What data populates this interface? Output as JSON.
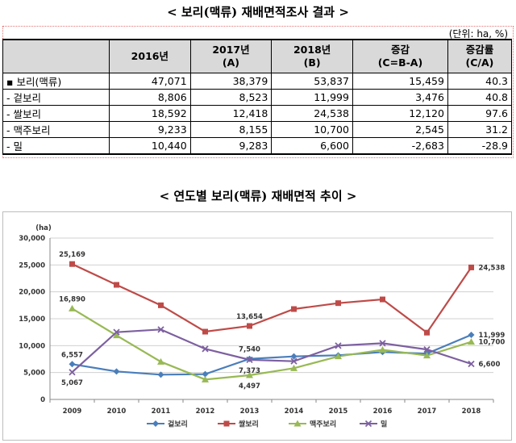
{
  "titles": {
    "table_title": "< 보리(맥류) 재배면적조사 결과 >",
    "chart_title": "< 연도별 보리(맥류) 재배면적 추이 >",
    "unit": "(단위: ha, %)"
  },
  "table": {
    "headers": [
      "",
      "2016년",
      "2017년\n(A)",
      "2018년\n(B)",
      "증감\n(C=B-A)",
      "증감률\n(C/A)"
    ],
    "rows": [
      {
        "label": "▪ 보리(맥류)",
        "v2016": "47,071",
        "v2017": "38,379",
        "v2018": "53,837",
        "diff": "15,459",
        "rate": "40.3"
      },
      {
        "label": " - 겉보리",
        "v2016": "8,806",
        "v2017": "8,523",
        "v2018": "11,999",
        "diff": "3,476",
        "rate": "40.8"
      },
      {
        "label": " - 쌀보리",
        "v2016": "18,592",
        "v2017": "12,418",
        "v2018": "24,538",
        "diff": "12,120",
        "rate": "97.6"
      },
      {
        "label": " - 맥주보리",
        "v2016": "9,233",
        "v2017": "8,155",
        "v2018": "10,700",
        "diff": "2,545",
        "rate": "31.2"
      },
      {
        "label": " - 밀",
        "v2016": "10,440",
        "v2017": "9,283",
        "v2018": "6,600",
        "diff": "-2,683",
        "rate": "-28.9"
      }
    ]
  },
  "chart_data": {
    "type": "line",
    "title": "",
    "ylabel": "(ha)",
    "xlabel": "",
    "x": [
      "2009",
      "2010",
      "2011",
      "2012",
      "2013",
      "2014",
      "2015",
      "2016",
      "2017",
      "2018"
    ],
    "ylim": [
      0,
      30000
    ],
    "yticks": [
      "0",
      "5,000",
      "10,000",
      "15,000",
      "20,000",
      "25,000",
      "30,000"
    ],
    "legend_position": "bottom",
    "grid": true,
    "series": [
      {
        "name": "겉보리",
        "color": "#4a7ebb",
        "marker": "diamond",
        "values": [
          6557,
          5200,
          4600,
          4700,
          7540,
          8000,
          8200,
          8806,
          8523,
          11999
        ]
      },
      {
        "name": "쌀보리",
        "color": "#be4b48",
        "marker": "square",
        "values": [
          25169,
          21300,
          17500,
          12600,
          13654,
          16800,
          17900,
          18592,
          12418,
          24538
        ]
      },
      {
        "name": "맥주보리",
        "color": "#98b954",
        "marker": "triangle",
        "values": [
          16890,
          11900,
          7000,
          3700,
          4497,
          5800,
          8000,
          9233,
          8155,
          10700
        ]
      },
      {
        "name": "밀",
        "color": "#7d60a0",
        "marker": "x",
        "values": [
          5067,
          12500,
          13000,
          9400,
          7373,
          7100,
          10000,
          10440,
          9283,
          6600
        ]
      }
    ],
    "annotations": [
      {
        "series": 0,
        "index": 0,
        "text": "6,557",
        "pos": "above"
      },
      {
        "series": 1,
        "index": 0,
        "text": "25,169",
        "pos": "above"
      },
      {
        "series": 2,
        "index": 0,
        "text": "16,890",
        "pos": "above"
      },
      {
        "series": 3,
        "index": 0,
        "text": "5,067",
        "pos": "below"
      },
      {
        "series": 1,
        "index": 4,
        "text": "13,654",
        "pos": "above"
      },
      {
        "series": 0,
        "index": 4,
        "text": "7,540",
        "pos": "above"
      },
      {
        "series": 3,
        "index": 4,
        "text": "7,373",
        "pos": "below"
      },
      {
        "series": 2,
        "index": 4,
        "text": "4,497",
        "pos": "below"
      },
      {
        "series": 1,
        "index": 9,
        "text": "24,538",
        "pos": "right"
      },
      {
        "series": 0,
        "index": 9,
        "text": "11,999",
        "pos": "right"
      },
      {
        "series": 2,
        "index": 9,
        "text": "10,700",
        "pos": "right"
      },
      {
        "series": 3,
        "index": 9,
        "text": "6,600",
        "pos": "right"
      }
    ]
  }
}
